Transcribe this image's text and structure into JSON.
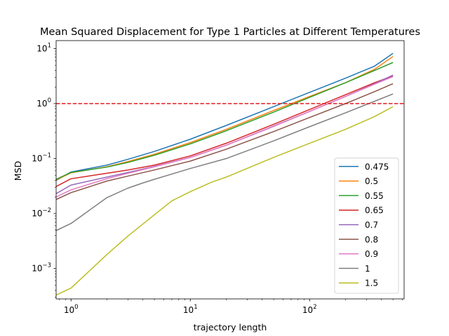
{
  "chart_data": {
    "type": "line",
    "title": "Mean Squared Displacement for Type 1 Particles at Different Temperatures",
    "xlabel": "trajectory length",
    "ylabel": "MSD",
    "xscale": "log",
    "yscale": "log",
    "xlim": [
      0.75,
      620
    ],
    "ylim": [
      0.00028,
      14
    ],
    "x_ticks": [
      {
        "value": 1,
        "label": "10",
        "exp": "0"
      },
      {
        "value": 10,
        "label": "10",
        "exp": "1"
      },
      {
        "value": 100,
        "label": "10",
        "exp": "2"
      }
    ],
    "y_ticks": [
      {
        "value": 0.001,
        "label": "10",
        "exp": "−3"
      },
      {
        "value": 0.01,
        "label": "10",
        "exp": "−2"
      },
      {
        "value": 0.1,
        "label": "10",
        "exp": "−1"
      },
      {
        "value": 1,
        "label": "10",
        "exp": "0"
      },
      {
        "value": 10,
        "label": "10",
        "exp": "1"
      }
    ],
    "grid": false,
    "legend_position": "lower-right",
    "reference_line": {
      "y": 1,
      "color": "#e41a1c",
      "style": "dashed"
    },
    "series": [
      {
        "name": "0.475",
        "color": "#1f77b4",
        "x": [
          0.75,
          1,
          2,
          3,
          5,
          10,
          20,
          50,
          100,
          200,
          350,
          500
        ],
        "y": [
          0.04,
          0.057,
          0.076,
          0.097,
          0.135,
          0.225,
          0.4,
          0.88,
          1.6,
          2.9,
          4.8,
          8.2
        ]
      },
      {
        "name": "0.5",
        "color": "#ff7f0e",
        "x": [
          0.75,
          1,
          2,
          3,
          5,
          10,
          20,
          50,
          100,
          200,
          350,
          500
        ],
        "y": [
          0.041,
          0.055,
          0.071,
          0.088,
          0.12,
          0.195,
          0.34,
          0.75,
          1.35,
          2.4,
          4.2,
          7.2
        ]
      },
      {
        "name": "0.55",
        "color": "#2ca02c",
        "x": [
          0.75,
          1,
          2,
          3,
          5,
          10,
          20,
          50,
          100,
          200,
          350,
          500
        ],
        "y": [
          0.042,
          0.056,
          0.07,
          0.085,
          0.115,
          0.185,
          0.32,
          0.7,
          1.3,
          2.4,
          4.0,
          5.6
        ]
      },
      {
        "name": "0.65",
        "color": "#d62728",
        "x": [
          0.75,
          1,
          2,
          3,
          5,
          10,
          20,
          50,
          100,
          200,
          350,
          500
        ],
        "y": [
          0.031,
          0.043,
          0.054,
          0.062,
          0.076,
          0.112,
          0.19,
          0.42,
          0.78,
          1.45,
          2.4,
          3.2
        ]
      },
      {
        "name": "0.7",
        "color": "#9467bd",
        "x": [
          0.75,
          1,
          2,
          3,
          5,
          10,
          20,
          50,
          100,
          200,
          350,
          500
        ],
        "y": [
          0.023,
          0.033,
          0.046,
          0.056,
          0.072,
          0.105,
          0.175,
          0.39,
          0.72,
          1.35,
          2.3,
          3.3
        ]
      },
      {
        "name": "0.8",
        "color": "#8c564b",
        "x": [
          0.75,
          1,
          2,
          3,
          5,
          10,
          20,
          50,
          100,
          200,
          350,
          500
        ],
        "y": [
          0.018,
          0.024,
          0.039,
          0.048,
          0.062,
          0.09,
          0.148,
          0.31,
          0.56,
          1.0,
          1.65,
          2.3
        ]
      },
      {
        "name": "0.9",
        "color": "#e377c2",
        "x": [
          0.75,
          1,
          2,
          3,
          5,
          10,
          20,
          50,
          100,
          200,
          350,
          500
        ],
        "y": [
          0.02,
          0.027,
          0.043,
          0.054,
          0.071,
          0.105,
          0.175,
          0.385,
          0.72,
          1.35,
          2.25,
          3.1
        ]
      },
      {
        "name": "1",
        "color": "#7f7f7f",
        "x": [
          0.75,
          1,
          2,
          3,
          4,
          5,
          10,
          20,
          50,
          100,
          200,
          350,
          500
        ],
        "y": [
          0.0049,
          0.0066,
          0.0195,
          0.029,
          0.036,
          0.042,
          0.066,
          0.1,
          0.21,
          0.38,
          0.68,
          1.1,
          1.5
        ]
      },
      {
        "name": "1.5",
        "color": "#bcbd22",
        "x": [
          0.75,
          1,
          2,
          3,
          5,
          7,
          10,
          15,
          20,
          50,
          100,
          200,
          350,
          500
        ],
        "y": [
          0.00033,
          0.00044,
          0.0018,
          0.0039,
          0.0095,
          0.017,
          0.025,
          0.037,
          0.046,
          0.105,
          0.19,
          0.34,
          0.58,
          0.88
        ]
      }
    ]
  }
}
